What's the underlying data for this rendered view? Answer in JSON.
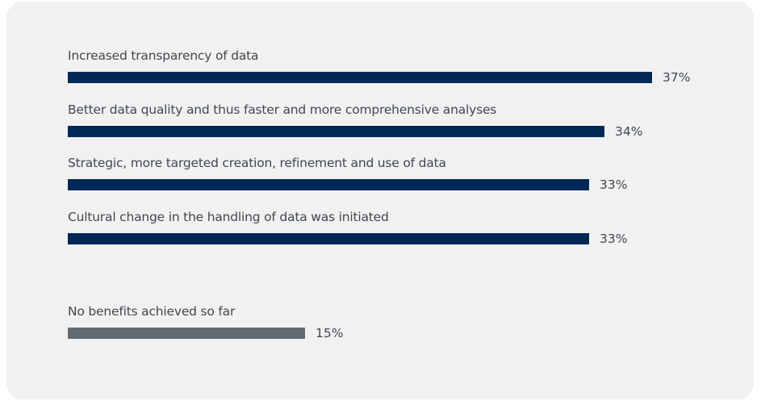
{
  "chart_data": {
    "type": "bar",
    "orientation": "horizontal",
    "title": "",
    "xlabel": "",
    "ylabel": "",
    "grid": false,
    "legend": null,
    "categories": [
      "Increased transparency of data",
      "Better data quality and thus faster and more comprehensive analyses",
      "Strategic, more targeted creation, refinement and use of data",
      "Cultural change in the handling of data was initiated",
      "No benefits achieved so far"
    ],
    "values": [
      37,
      34,
      33,
      33,
      15
    ],
    "value_labels": [
      "37%",
      "34%",
      "33%",
      "33%",
      "15%"
    ],
    "colors": [
      "#002856",
      "#002856",
      "#002856",
      "#002856",
      "#636b72"
    ],
    "unit": "%"
  },
  "bars": [
    {
      "label": "Increased transparency of data",
      "value_label": "37%"
    },
    {
      "label": "Better data quality and thus faster and more comprehensive analyses",
      "value_label": "34%"
    },
    {
      "label": "Strategic, more targeted creation, refinement and use of data",
      "value_label": "33%"
    },
    {
      "label": "Cultural change in the handling of data was initiated",
      "value_label": "33%"
    },
    {
      "label": "No benefits achieved so far",
      "value_label": "15%"
    }
  ]
}
